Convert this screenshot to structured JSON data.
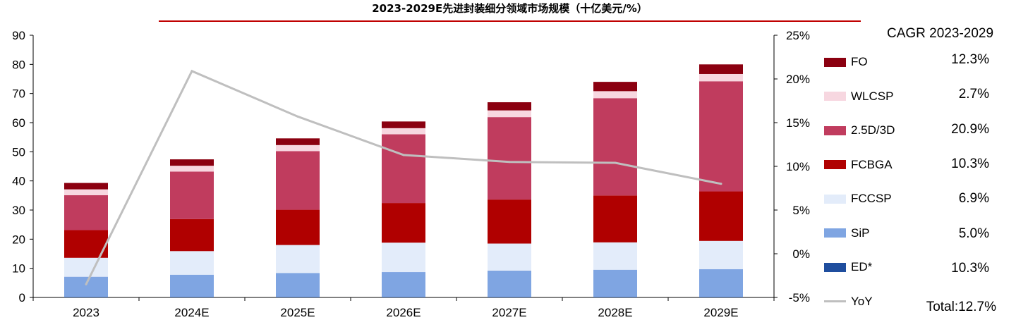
{
  "chart_data": {
    "type": "bar",
    "title": "2023-2029E先进封装细分领域市场规模（十亿美元/%）",
    "categories": [
      "2023",
      "2024E",
      "2025E",
      "2026E",
      "2027E",
      "2028E",
      "2029E"
    ],
    "series": [
      {
        "name": "ED*",
        "color": "#1F4E9E",
        "values": [
          0.1,
          0.1,
          0.1,
          0.1,
          0.1,
          0.1,
          0.1
        ]
      },
      {
        "name": "SiP",
        "color": "#7FA5E2",
        "values": [
          7.0,
          7.7,
          8.3,
          8.6,
          9.1,
          9.4,
          9.6
        ]
      },
      {
        "name": "FCCSP",
        "color": "#E3ECFA",
        "values": [
          6.5,
          8.1,
          9.6,
          10.1,
          9.3,
          9.4,
          9.7
        ]
      },
      {
        "name": "FCBGA",
        "color": "#B00000",
        "values": [
          9.5,
          11.0,
          12.1,
          13.6,
          15.1,
          16.1,
          17.0
        ]
      },
      {
        "name": "2.5D/3D",
        "color": "#C03C5E",
        "values": [
          12.0,
          16.3,
          20.1,
          23.6,
          28.3,
          33.4,
          37.8
        ]
      },
      {
        "name": "WLCSP",
        "color": "#F7D7E0",
        "values": [
          2.0,
          2.0,
          2.1,
          2.1,
          2.3,
          2.4,
          2.5
        ]
      },
      {
        "name": "FO",
        "color": "#8B0010",
        "values": [
          2.2,
          2.2,
          2.3,
          2.3,
          2.8,
          3.2,
          3.3
        ]
      }
    ],
    "line": {
      "name": "YoY",
      "color": "#BFBFBF",
      "values": [
        -3.5,
        20.9,
        15.7,
        11.3,
        10.5,
        10.4,
        8.0
      ]
    },
    "ylim": [
      0,
      90
    ],
    "yticks": [
      "0",
      "10",
      "20",
      "30",
      "40",
      "50",
      "60",
      "70",
      "80",
      "90"
    ],
    "y2lim": [
      -5,
      25
    ],
    "y2ticks": [
      "-5%",
      "0%",
      "5%",
      "10%",
      "15%",
      "20%",
      "25%"
    ]
  },
  "legend": {
    "items": [
      {
        "label": "FO",
        "color": "#8B0010",
        "kind": "bar"
      },
      {
        "label": "WLCSP",
        "color": "#F7D7E0",
        "kind": "bar"
      },
      {
        "label": "2.5D/3D",
        "color": "#C03C5E",
        "kind": "bar"
      },
      {
        "label": "FCBGA",
        "color": "#B00000",
        "kind": "bar"
      },
      {
        "label": "FCCSP",
        "color": "#E3ECFA",
        "kind": "bar"
      },
      {
        "label": "SiP",
        "color": "#7FA5E2",
        "kind": "bar"
      },
      {
        "label": "ED*",
        "color": "#1F4E9E",
        "kind": "bar"
      },
      {
        "label": "YoY",
        "color": "#BFBFBF",
        "kind": "line"
      }
    ]
  },
  "cagr": {
    "header": "CAGR 2023-2029",
    "values": [
      "12.3%",
      "2.7%",
      "20.9%",
      "10.3%",
      "6.9%",
      "5.0%",
      "10.3%"
    ],
    "total": "Total:12.7%"
  }
}
